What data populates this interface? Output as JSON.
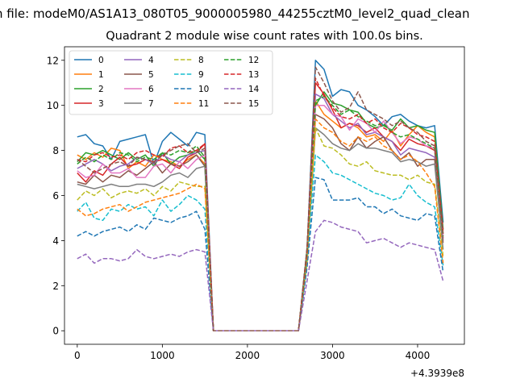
{
  "figure": {
    "suptitle": "n file: modeM0/AS1A13_080T05_9000005980_44255cztM0_level2_quad_clean",
    "title": "Quadrant 2 module wise count rates with 100.0s bins.",
    "x_offset_label": "+4.3939e8"
  },
  "chart_data": {
    "type": "line",
    "title": "Quadrant 2 module wise count rates with 100.0s bins.",
    "xlabel": "",
    "ylabel": "",
    "x_offset": "+4.3939e8",
    "xlim": [
      -150,
      4550
    ],
    "ylim": [
      -0.6,
      12.6
    ],
    "xticks": [
      0,
      1000,
      2000,
      3000,
      4000
    ],
    "yticks": [
      0,
      2,
      4,
      6,
      8,
      10,
      12
    ],
    "grid": false,
    "legend": {
      "placement": "top-left",
      "columns": 4
    },
    "x": [
      0,
      100,
      200,
      300,
      400,
      500,
      600,
      700,
      800,
      900,
      1000,
      1100,
      1200,
      1300,
      1400,
      1500,
      1600,
      1700,
      1800,
      1900,
      2000,
      2100,
      2200,
      2300,
      2400,
      2500,
      2600,
      2700,
      2800,
      2900,
      3000,
      3100,
      3200,
      3300,
      3400,
      3500,
      3600,
      3700,
      3800,
      3900,
      4000,
      4100,
      4200,
      4300
    ],
    "series": [
      {
        "name": "0",
        "color": "#1f77b4",
        "dash": "solid",
        "values": [
          8.6,
          8.7,
          8.3,
          8.2,
          7.6,
          8.4,
          8.5,
          8.6,
          8.7,
          7.4,
          8.4,
          8.8,
          8.5,
          8.2,
          8.8,
          8.7,
          0,
          0,
          0,
          0,
          0,
          0,
          0,
          0,
          0,
          0,
          0,
          3.5,
          12.0,
          11.6,
          10.4,
          10.7,
          10.6,
          10.0,
          9.8,
          9.5,
          9.1,
          9.5,
          9.6,
          9.3,
          9.1,
          9.0,
          9.1,
          4.8
        ]
      },
      {
        "name": "1",
        "color": "#ff7f0e",
        "dash": "solid",
        "values": [
          7.8,
          7.6,
          7.9,
          7.7,
          8.1,
          8.0,
          7.2,
          7.5,
          7.3,
          7.8,
          7.6,
          7.5,
          7.3,
          7.6,
          7.8,
          7.4,
          0,
          0,
          0,
          0,
          0,
          0,
          0,
          0,
          0,
          0,
          0,
          3.4,
          10.2,
          9.6,
          9.3,
          9.0,
          9.2,
          9.0,
          8.6,
          8.7,
          8.4,
          8.9,
          8.2,
          8.7,
          9.1,
          8.8,
          8.6,
          4.3
        ]
      },
      {
        "name": "2",
        "color": "#2ca02c",
        "dash": "solid",
        "values": [
          7.5,
          7.9,
          7.8,
          8.0,
          7.8,
          7.6,
          7.9,
          7.6,
          7.8,
          7.3,
          7.9,
          7.4,
          7.7,
          7.8,
          8.0,
          7.6,
          0,
          0,
          0,
          0,
          0,
          0,
          0,
          0,
          0,
          0,
          0,
          3.6,
          10.0,
          10.6,
          10.1,
          10.0,
          9.8,
          9.7,
          9.2,
          9.0,
          9.1,
          8.9,
          9.4,
          9.0,
          9.1,
          8.9,
          8.8,
          4.5
        ]
      },
      {
        "name": "3",
        "color": "#d62728",
        "dash": "solid",
        "values": [
          7.0,
          6.6,
          7.1,
          6.9,
          7.4,
          7.7,
          7.3,
          7.4,
          7.6,
          7.5,
          7.6,
          7.4,
          7.2,
          7.7,
          7.9,
          8.3,
          0,
          0,
          0,
          0,
          0,
          0,
          0,
          0,
          0,
          0,
          0,
          3.3,
          11.0,
          10.5,
          9.8,
          9.0,
          9.2,
          9.1,
          8.8,
          9.0,
          8.6,
          8.4,
          8.0,
          8.5,
          8.3,
          8.2,
          8.0,
          4.1
        ]
      },
      {
        "name": "4",
        "color": "#9467bd",
        "dash": "solid",
        "values": [
          7.2,
          7.4,
          7.6,
          7.4,
          7.1,
          7.3,
          7.4,
          7.7,
          7.6,
          7.4,
          7.8,
          7.6,
          7.5,
          7.8,
          7.9,
          8.0,
          0,
          0,
          0,
          0,
          0,
          0,
          0,
          0,
          0,
          0,
          0,
          3.2,
          10.5,
          10.3,
          9.6,
          9.3,
          9.0,
          9.2,
          8.7,
          8.8,
          8.6,
          8.4,
          7.8,
          8.1,
          8.0,
          7.9,
          7.7,
          4.0
        ]
      },
      {
        "name": "5",
        "color": "#8c564b",
        "dash": "solid",
        "values": [
          6.6,
          6.5,
          6.9,
          6.6,
          6.9,
          6.8,
          7.1,
          6.9,
          7.2,
          7.5,
          7.0,
          7.4,
          7.3,
          7.5,
          7.8,
          7.3,
          0,
          0,
          0,
          0,
          0,
          0,
          0,
          0,
          0,
          0,
          0,
          3.3,
          9.6,
          9.4,
          9.0,
          8.3,
          8.0,
          8.6,
          8.1,
          8.4,
          8.6,
          8.0,
          7.6,
          7.9,
          7.3,
          7.6,
          7.6,
          3.9
        ]
      },
      {
        "name": "6",
        "color": "#e377c2",
        "dash": "solid",
        "values": [
          7.1,
          6.8,
          6.9,
          7.4,
          7.0,
          7.0,
          7.2,
          6.8,
          6.8,
          7.3,
          7.4,
          7.0,
          7.5,
          7.2,
          7.6,
          7.8,
          0,
          0,
          0,
          0,
          0,
          0,
          0,
          0,
          0,
          0,
          0,
          3.2,
          10.0,
          10.0,
          9.6,
          9.5,
          8.9,
          9.4,
          9.2,
          8.8,
          9.3,
          8.8,
          8.3,
          8.6,
          8.5,
          8.2,
          8.1,
          4.2
        ]
      },
      {
        "name": "7",
        "color": "#7f7f7f",
        "dash": "solid",
        "values": [
          6.5,
          6.4,
          6.3,
          6.4,
          6.5,
          6.4,
          6.4,
          6.5,
          6.5,
          6.4,
          6.6,
          6.9,
          7.0,
          6.8,
          7.2,
          7.3,
          0,
          0,
          0,
          0,
          0,
          0,
          0,
          0,
          0,
          0,
          0,
          3.0,
          9.0,
          8.7,
          8.3,
          8.1,
          8.0,
          8.3,
          8.1,
          8.1,
          8.0,
          7.9,
          7.5,
          7.6,
          7.5,
          7.3,
          7.4,
          3.6
        ]
      },
      {
        "name": "8",
        "color": "#bcbd22",
        "dash": "dashed",
        "values": [
          5.8,
          6.2,
          6.0,
          6.3,
          5.9,
          6.1,
          6.2,
          6.1,
          6.3,
          6.0,
          6.4,
          6.2,
          6.6,
          6.5,
          6.4,
          6.4,
          0,
          0,
          0,
          0,
          0,
          0,
          0,
          0,
          0,
          0,
          0,
          3.0,
          9.0,
          8.2,
          8.1,
          7.8,
          7.4,
          7.3,
          7.5,
          7.1,
          7.0,
          6.9,
          6.9,
          6.7,
          6.9,
          6.6,
          6.5,
          3.3
        ]
      },
      {
        "name": "9",
        "color": "#17becf",
        "dash": "dashed",
        "values": [
          5.3,
          5.7,
          5.0,
          4.9,
          5.4,
          5.3,
          5.6,
          5.4,
          5.5,
          5.1,
          5.8,
          5.3,
          5.6,
          6.0,
          5.8,
          5.4,
          0,
          0,
          0,
          0,
          0,
          0,
          0,
          0,
          0,
          0,
          0,
          3.2,
          7.8,
          7.5,
          7.0,
          6.9,
          6.7,
          6.5,
          6.3,
          6.1,
          6.0,
          5.8,
          5.9,
          6.5,
          6.0,
          5.7,
          5.5,
          2.9
        ]
      },
      {
        "name": "10",
        "color": "#1f77b4",
        "dash": "dashed",
        "values": [
          4.2,
          4.4,
          4.2,
          4.4,
          4.5,
          4.6,
          4.4,
          4.7,
          4.5,
          5.0,
          4.9,
          4.8,
          5.0,
          5.1,
          5.3,
          4.5,
          0,
          0,
          0,
          0,
          0,
          0,
          0,
          0,
          0,
          0,
          0,
          2.8,
          6.8,
          6.7,
          5.8,
          5.8,
          5.8,
          5.9,
          5.5,
          5.5,
          5.2,
          5.4,
          5.1,
          5.0,
          4.9,
          5.2,
          5.1,
          2.6
        ]
      },
      {
        "name": "11",
        "color": "#ff7f0e",
        "dash": "dashed",
        "values": [
          5.4,
          5.1,
          5.2,
          5.4,
          5.5,
          5.6,
          5.3,
          5.5,
          5.7,
          5.8,
          5.9,
          6.0,
          6.1,
          6.3,
          6.5,
          6.3,
          0,
          0,
          0,
          0,
          0,
          0,
          0,
          0,
          0,
          0,
          0,
          3.3,
          9.4,
          9.0,
          8.8,
          8.4,
          8.2,
          8.6,
          8.4,
          8.6,
          8.2,
          8.0,
          7.6,
          7.8,
          7.5,
          7.0,
          6.4,
          3.0
        ]
      },
      {
        "name": "12",
        "color": "#2ca02c",
        "dash": "dashed",
        "values": [
          7.4,
          7.7,
          7.5,
          7.8,
          7.6,
          7.9,
          7.8,
          7.5,
          7.7,
          7.6,
          7.9,
          7.8,
          8.0,
          7.9,
          8.2,
          7.7,
          0,
          0,
          0,
          0,
          0,
          0,
          0,
          0,
          0,
          0,
          0,
          3.5,
          10.2,
          10.4,
          10.0,
          9.6,
          9.8,
          9.5,
          9.3,
          9.1,
          9.2,
          8.8,
          8.6,
          8.7,
          8.5,
          8.3,
          8.1,
          4.2
        ]
      },
      {
        "name": "13",
        "color": "#d62728",
        "dash": "dashed",
        "values": [
          7.6,
          7.5,
          7.8,
          7.9,
          7.7,
          7.8,
          7.6,
          7.9,
          8.0,
          7.8,
          7.7,
          8.1,
          8.2,
          7.9,
          8.0,
          8.3,
          0,
          0,
          0,
          0,
          0,
          0,
          0,
          0,
          0,
          0,
          0,
          3.6,
          11.2,
          10.4,
          9.9,
          9.5,
          9.4,
          9.6,
          9.2,
          9.4,
          9.0,
          8.8,
          9.2,
          9.0,
          8.7,
          8.6,
          8.4,
          4.4
        ]
      },
      {
        "name": "14",
        "color": "#9467bd",
        "dash": "dashed",
        "values": [
          3.2,
          3.4,
          3.0,
          3.2,
          3.2,
          3.1,
          3.2,
          3.6,
          3.3,
          3.2,
          3.3,
          3.4,
          3.3,
          3.5,
          3.6,
          3.5,
          0,
          0,
          0,
          0,
          0,
          0,
          0,
          0,
          0,
          0,
          0,
          2.2,
          4.4,
          4.9,
          4.8,
          4.6,
          4.5,
          4.4,
          3.9,
          4.0,
          4.1,
          3.9,
          3.7,
          3.9,
          3.8,
          3.7,
          3.6,
          2.2
        ]
      },
      {
        "name": "15",
        "color": "#8c564b",
        "dash": "dashed",
        "values": [
          7.6,
          7.3,
          7.0,
          7.2,
          7.4,
          7.5,
          7.3,
          7.7,
          7.6,
          7.5,
          7.8,
          8.0,
          8.2,
          8.3,
          7.9,
          8.1,
          0,
          0,
          0,
          0,
          0,
          0,
          0,
          0,
          0,
          0,
          0,
          3.7,
          11.7,
          11.0,
          10.2,
          9.7,
          9.9,
          10.6,
          9.8,
          9.6,
          9.4,
          9.1,
          9.3,
          9.0,
          8.8,
          8.4,
          8.2,
          4.3
        ]
      }
    ]
  }
}
